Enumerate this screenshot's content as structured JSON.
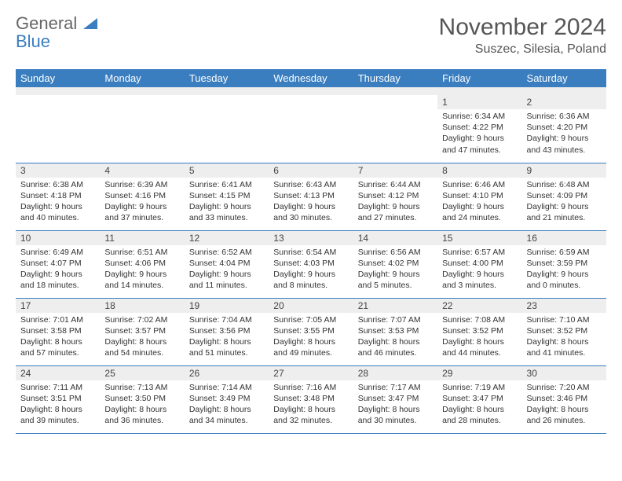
{
  "brand": {
    "line1": "General",
    "line2": "Blue"
  },
  "title": "November 2024",
  "location": "Suszec, Silesia, Poland",
  "colors": {
    "header_bg": "#3a7ebf",
    "header_fg": "#ffffff",
    "daynum_bg": "#eeeeee",
    "rule": "#3a7ebf",
    "text": "#333333"
  },
  "day_names": [
    "Sunday",
    "Monday",
    "Tuesday",
    "Wednesday",
    "Thursday",
    "Friday",
    "Saturday"
  ],
  "weeks": [
    [
      null,
      null,
      null,
      null,
      null,
      {
        "n": "1",
        "sr": "Sunrise: 6:34 AM",
        "ss": "Sunset: 4:22 PM",
        "d1": "Daylight: 9 hours",
        "d2": "and 47 minutes."
      },
      {
        "n": "2",
        "sr": "Sunrise: 6:36 AM",
        "ss": "Sunset: 4:20 PM",
        "d1": "Daylight: 9 hours",
        "d2": "and 43 minutes."
      }
    ],
    [
      {
        "n": "3",
        "sr": "Sunrise: 6:38 AM",
        "ss": "Sunset: 4:18 PM",
        "d1": "Daylight: 9 hours",
        "d2": "and 40 minutes."
      },
      {
        "n": "4",
        "sr": "Sunrise: 6:39 AM",
        "ss": "Sunset: 4:16 PM",
        "d1": "Daylight: 9 hours",
        "d2": "and 37 minutes."
      },
      {
        "n": "5",
        "sr": "Sunrise: 6:41 AM",
        "ss": "Sunset: 4:15 PM",
        "d1": "Daylight: 9 hours",
        "d2": "and 33 minutes."
      },
      {
        "n": "6",
        "sr": "Sunrise: 6:43 AM",
        "ss": "Sunset: 4:13 PM",
        "d1": "Daylight: 9 hours",
        "d2": "and 30 minutes."
      },
      {
        "n": "7",
        "sr": "Sunrise: 6:44 AM",
        "ss": "Sunset: 4:12 PM",
        "d1": "Daylight: 9 hours",
        "d2": "and 27 minutes."
      },
      {
        "n": "8",
        "sr": "Sunrise: 6:46 AM",
        "ss": "Sunset: 4:10 PM",
        "d1": "Daylight: 9 hours",
        "d2": "and 24 minutes."
      },
      {
        "n": "9",
        "sr": "Sunrise: 6:48 AM",
        "ss": "Sunset: 4:09 PM",
        "d1": "Daylight: 9 hours",
        "d2": "and 21 minutes."
      }
    ],
    [
      {
        "n": "10",
        "sr": "Sunrise: 6:49 AM",
        "ss": "Sunset: 4:07 PM",
        "d1": "Daylight: 9 hours",
        "d2": "and 18 minutes."
      },
      {
        "n": "11",
        "sr": "Sunrise: 6:51 AM",
        "ss": "Sunset: 4:06 PM",
        "d1": "Daylight: 9 hours",
        "d2": "and 14 minutes."
      },
      {
        "n": "12",
        "sr": "Sunrise: 6:52 AM",
        "ss": "Sunset: 4:04 PM",
        "d1": "Daylight: 9 hours",
        "d2": "and 11 minutes."
      },
      {
        "n": "13",
        "sr": "Sunrise: 6:54 AM",
        "ss": "Sunset: 4:03 PM",
        "d1": "Daylight: 9 hours",
        "d2": "and 8 minutes."
      },
      {
        "n": "14",
        "sr": "Sunrise: 6:56 AM",
        "ss": "Sunset: 4:02 PM",
        "d1": "Daylight: 9 hours",
        "d2": "and 5 minutes."
      },
      {
        "n": "15",
        "sr": "Sunrise: 6:57 AM",
        "ss": "Sunset: 4:00 PM",
        "d1": "Daylight: 9 hours",
        "d2": "and 3 minutes."
      },
      {
        "n": "16",
        "sr": "Sunrise: 6:59 AM",
        "ss": "Sunset: 3:59 PM",
        "d1": "Daylight: 9 hours",
        "d2": "and 0 minutes."
      }
    ],
    [
      {
        "n": "17",
        "sr": "Sunrise: 7:01 AM",
        "ss": "Sunset: 3:58 PM",
        "d1": "Daylight: 8 hours",
        "d2": "and 57 minutes."
      },
      {
        "n": "18",
        "sr": "Sunrise: 7:02 AM",
        "ss": "Sunset: 3:57 PM",
        "d1": "Daylight: 8 hours",
        "d2": "and 54 minutes."
      },
      {
        "n": "19",
        "sr": "Sunrise: 7:04 AM",
        "ss": "Sunset: 3:56 PM",
        "d1": "Daylight: 8 hours",
        "d2": "and 51 minutes."
      },
      {
        "n": "20",
        "sr": "Sunrise: 7:05 AM",
        "ss": "Sunset: 3:55 PM",
        "d1": "Daylight: 8 hours",
        "d2": "and 49 minutes."
      },
      {
        "n": "21",
        "sr": "Sunrise: 7:07 AM",
        "ss": "Sunset: 3:53 PM",
        "d1": "Daylight: 8 hours",
        "d2": "and 46 minutes."
      },
      {
        "n": "22",
        "sr": "Sunrise: 7:08 AM",
        "ss": "Sunset: 3:52 PM",
        "d1": "Daylight: 8 hours",
        "d2": "and 44 minutes."
      },
      {
        "n": "23",
        "sr": "Sunrise: 7:10 AM",
        "ss": "Sunset: 3:52 PM",
        "d1": "Daylight: 8 hours",
        "d2": "and 41 minutes."
      }
    ],
    [
      {
        "n": "24",
        "sr": "Sunrise: 7:11 AM",
        "ss": "Sunset: 3:51 PM",
        "d1": "Daylight: 8 hours",
        "d2": "and 39 minutes."
      },
      {
        "n": "25",
        "sr": "Sunrise: 7:13 AM",
        "ss": "Sunset: 3:50 PM",
        "d1": "Daylight: 8 hours",
        "d2": "and 36 minutes."
      },
      {
        "n": "26",
        "sr": "Sunrise: 7:14 AM",
        "ss": "Sunset: 3:49 PM",
        "d1": "Daylight: 8 hours",
        "d2": "and 34 minutes."
      },
      {
        "n": "27",
        "sr": "Sunrise: 7:16 AM",
        "ss": "Sunset: 3:48 PM",
        "d1": "Daylight: 8 hours",
        "d2": "and 32 minutes."
      },
      {
        "n": "28",
        "sr": "Sunrise: 7:17 AM",
        "ss": "Sunset: 3:47 PM",
        "d1": "Daylight: 8 hours",
        "d2": "and 30 minutes."
      },
      {
        "n": "29",
        "sr": "Sunrise: 7:19 AM",
        "ss": "Sunset: 3:47 PM",
        "d1": "Daylight: 8 hours",
        "d2": "and 28 minutes."
      },
      {
        "n": "30",
        "sr": "Sunrise: 7:20 AM",
        "ss": "Sunset: 3:46 PM",
        "d1": "Daylight: 8 hours",
        "d2": "and 26 minutes."
      }
    ]
  ]
}
